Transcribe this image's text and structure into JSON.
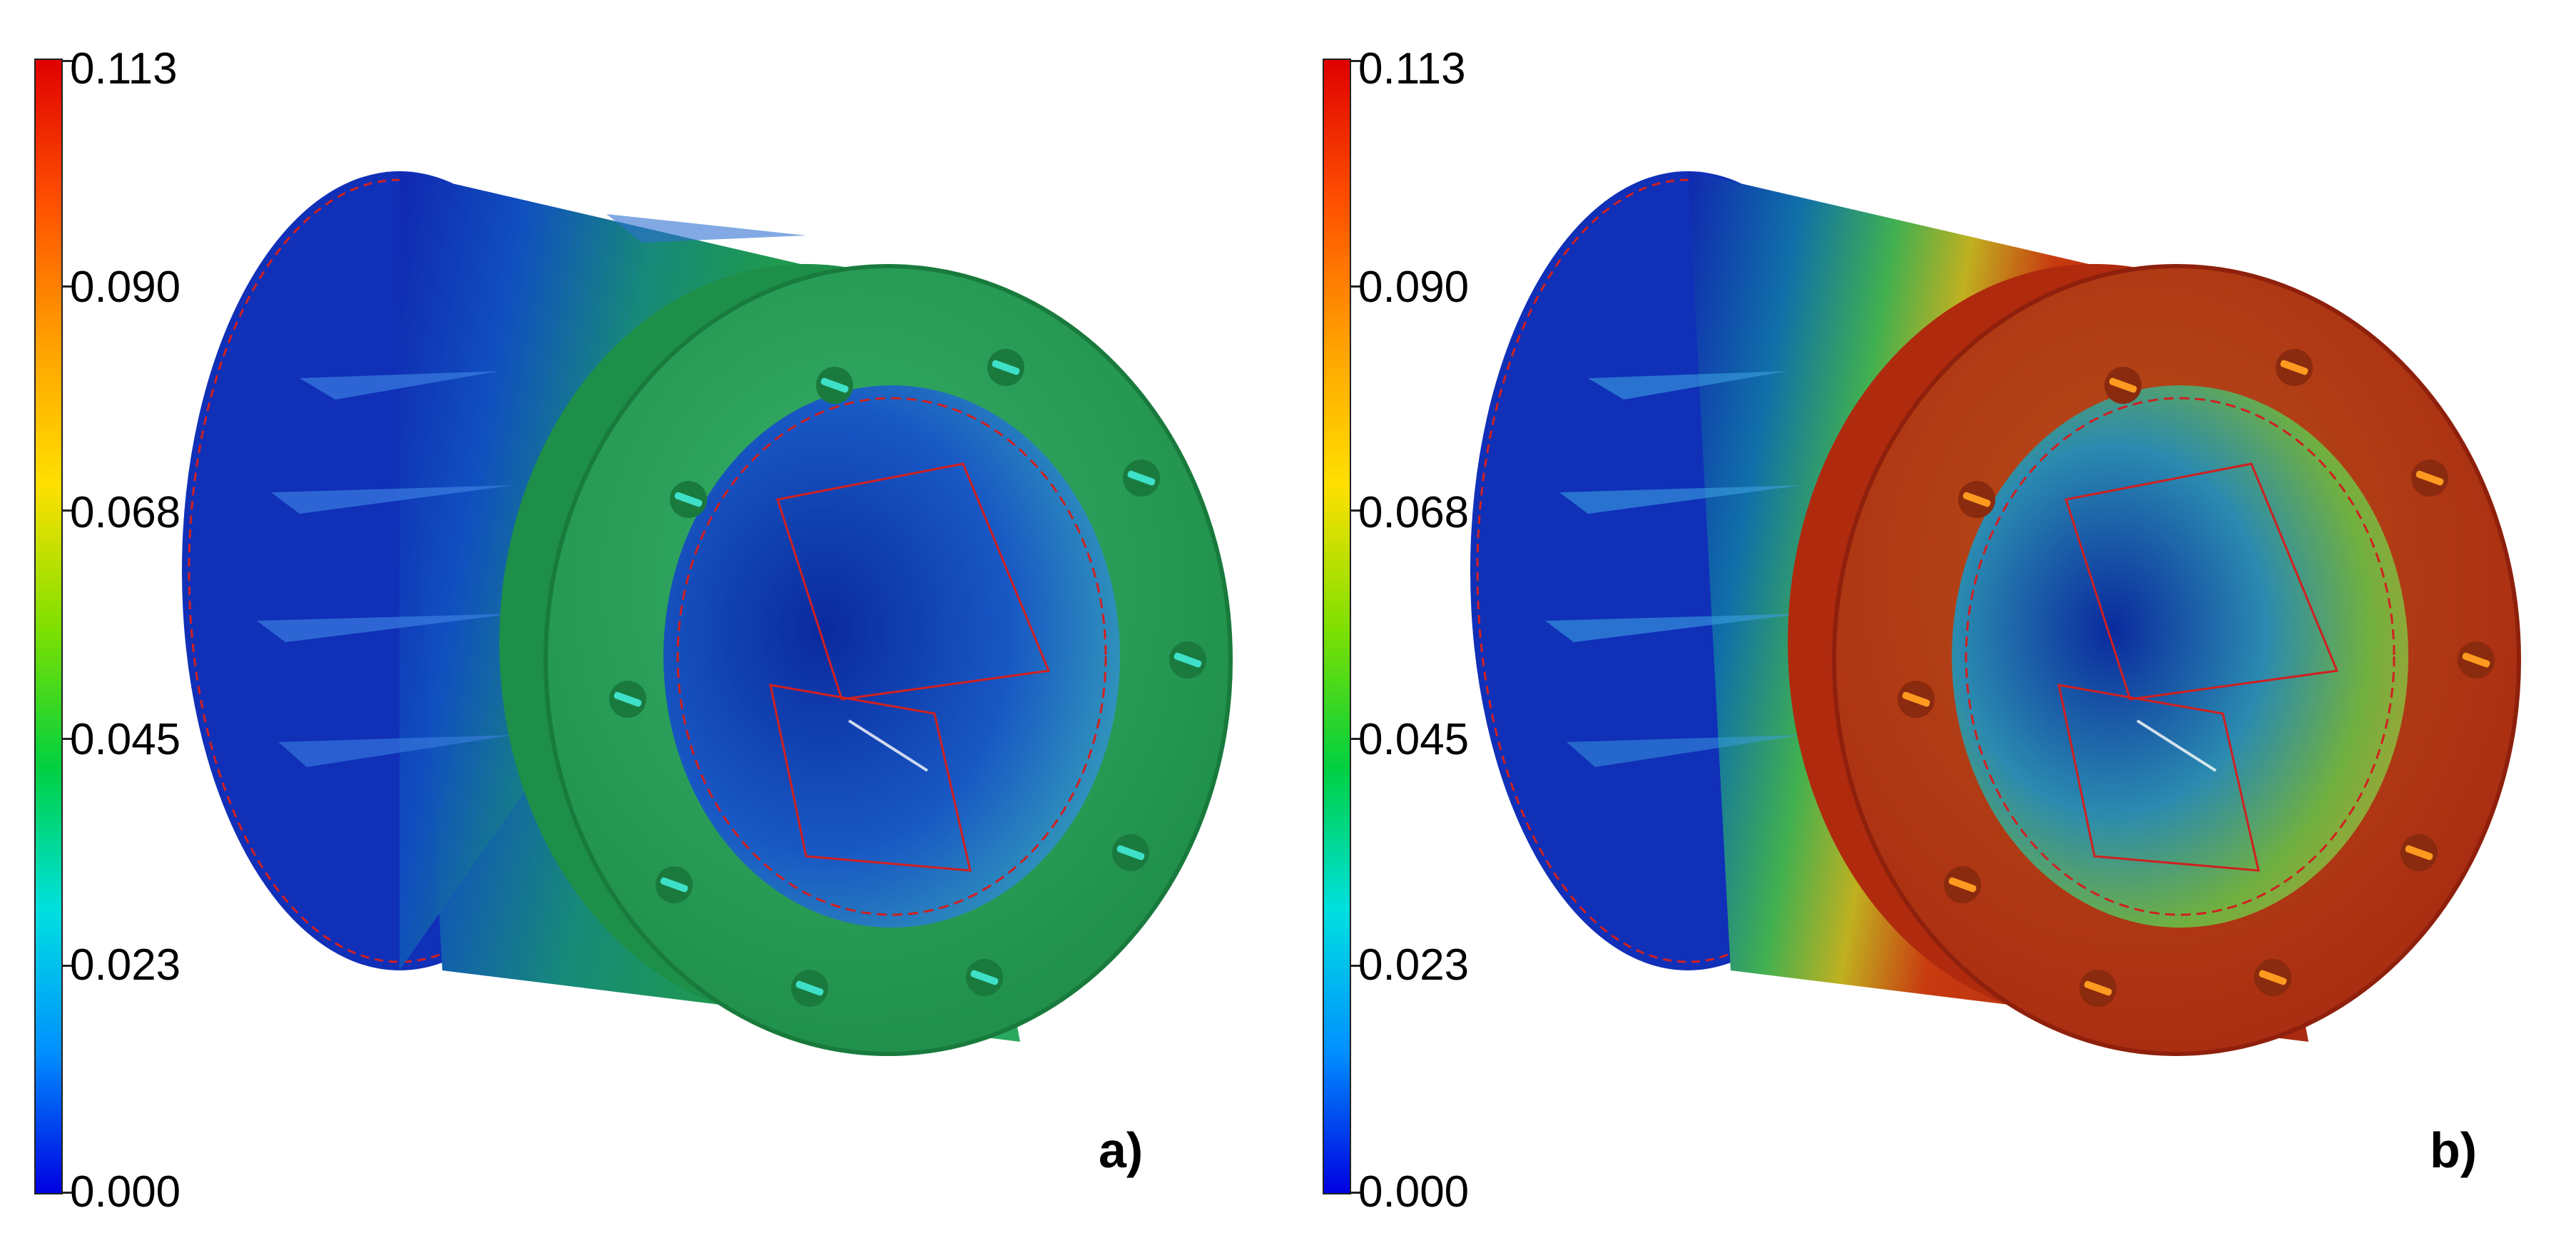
{
  "colorbar": {
    "ticks": [
      "0.113",
      "0.090",
      "0.068",
      "0.045",
      "0.023",
      "0.000"
    ],
    "max": 0.113,
    "min": 0.0,
    "colormap": [
      "#0000e0",
      "#0090ff",
      "#00e0e0",
      "#00d040",
      "#80e000",
      "#ffe000",
      "#ffa000",
      "#ff5000",
      "#e00000"
    ]
  },
  "panels": [
    {
      "label": "a)",
      "body_color": "#1f9a4c",
      "rear_color": "#1a3fb8",
      "bolt_color": "#3ee0c8"
    },
    {
      "label": "b)",
      "body_color": "#b32a0e",
      "rear_color": "#1a3fb8",
      "bolt_color": "#ff9a20"
    }
  ]
}
